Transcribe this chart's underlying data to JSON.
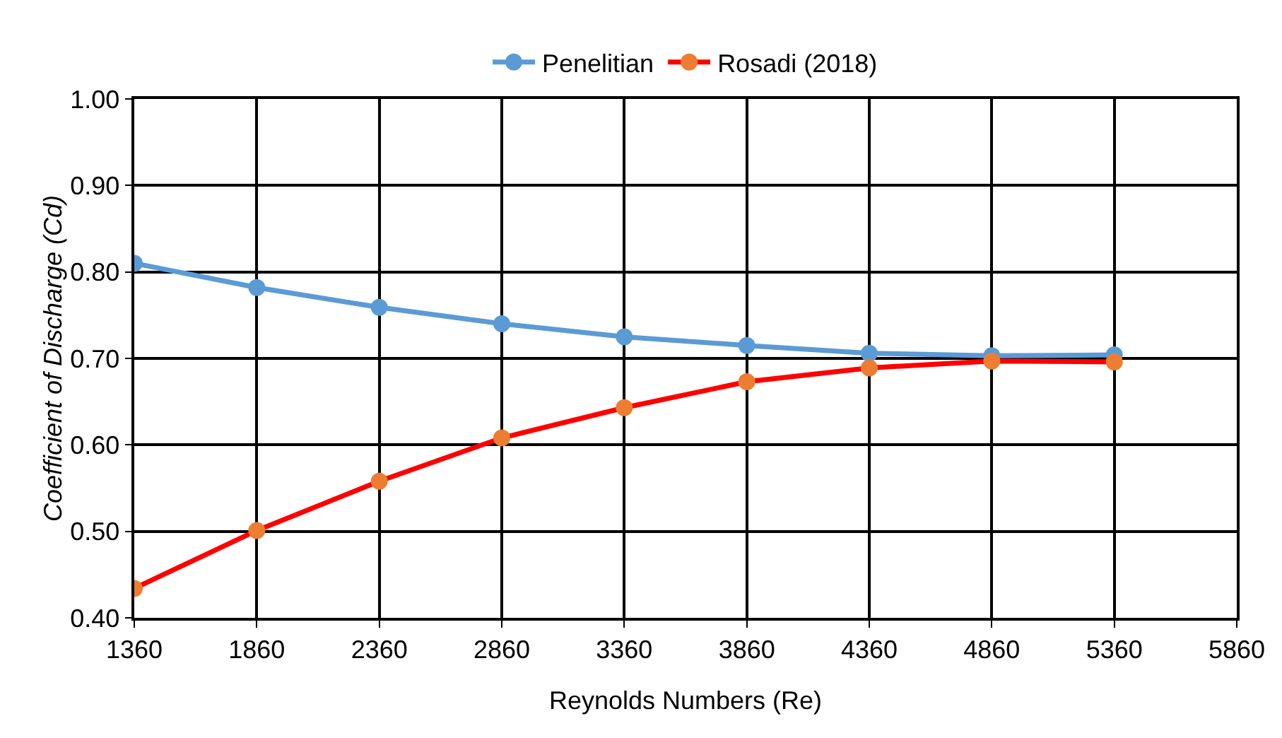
{
  "chart_data": {
    "type": "line",
    "x": [
      1360,
      1860,
      2360,
      2860,
      3360,
      3860,
      4360,
      4860,
      5360
    ],
    "series": [
      {
        "name": "Penelitian",
        "color": "#5b9bd5",
        "colors": [
          "#5b9bd5",
          "#5b9bd5",
          "#5b9bd5",
          "#5b9bd5",
          "#5b9bd5",
          "#5b9bd5",
          "#5b9bd5",
          "#5b9bd5",
          "#5b9bd5"
        ],
        "values": [
          0.81,
          0.782,
          0.759,
          0.74,
          0.725,
          0.715,
          0.706,
          0.703,
          0.704
        ]
      },
      {
        "name": "Rosadi (2018)",
        "color": "#ff0000",
        "colors": [
          "#ed7d31",
          "#ed7d31",
          "#ed7d31",
          "#ed7d31",
          "#ed7d31",
          "#ed7d31",
          "#ed7d31",
          "#ed7d31",
          "#ed7d31"
        ],
        "values": [
          0.434,
          0.501,
          0.558,
          0.608,
          0.643,
          0.673,
          0.689,
          0.697,
          0.696
        ]
      }
    ],
    "xlabel": "Reynolds Numbers (Re)",
    "ylabel": "Coefficient of Discharge (Cd)",
    "xlim": [
      1360,
      5860
    ],
    "xticks": [
      1360,
      1860,
      2360,
      2860,
      3360,
      3860,
      4360,
      4860,
      5360,
      5860
    ],
    "ylim": [
      0.4,
      1.0
    ],
    "yticks": [
      {
        "value": 0.4,
        "label": "0.40"
      },
      {
        "value": 0.5,
        "label": "0.50"
      },
      {
        "value": 0.6,
        "label": "0.60"
      },
      {
        "value": 0.7,
        "label": "0.70"
      },
      {
        "value": 0.8,
        "label": "0.80"
      },
      {
        "value": 0.9,
        "label": "0.90"
      },
      {
        "value": 1.0,
        "label": "1.00"
      }
    ],
    "grid": true,
    "legend": "top",
    "marker": "circle",
    "line_style": "solid"
  }
}
